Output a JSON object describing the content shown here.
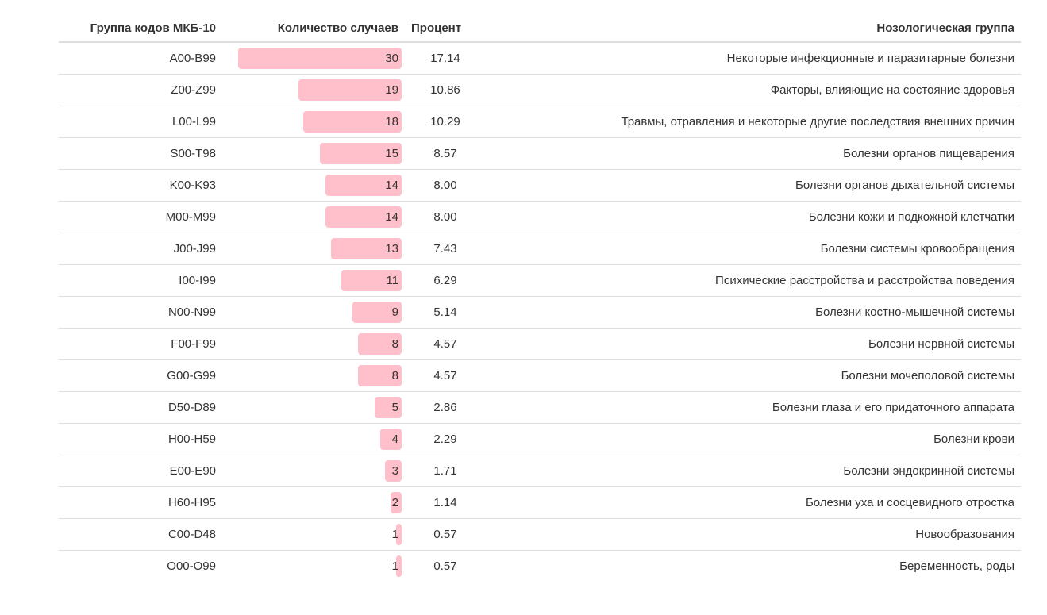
{
  "table": {
    "headers": {
      "code": "Группа кодов МКБ-10",
      "count": "Количество случаев",
      "percent": "Процент",
      "group": "Нозологическая группа"
    },
    "bar_color": "#ffc0cb",
    "max_count": 30,
    "rows": [
      {
        "code": "A00-B99",
        "count": "30",
        "percent": "17.14",
        "group": "Некоторые инфекционные и паразитарные болезни"
      },
      {
        "code": "Z00-Z99",
        "count": "19",
        "percent": "10.86",
        "group": "Факторы, влияющие на состояние здоровья"
      },
      {
        "code": "L00-L99",
        "count": "18",
        "percent": "10.29",
        "group": "Травмы, отравления и некоторые другие последствия внешних причин"
      },
      {
        "code": "S00-T98",
        "count": "15",
        "percent": "8.57",
        "group": "Болезни органов пищеварения"
      },
      {
        "code": "K00-K93",
        "count": "14",
        "percent": "8.00",
        "group": "Болезни органов дыхательной системы"
      },
      {
        "code": "M00-M99",
        "count": "14",
        "percent": "8.00",
        "group": "Болезни кожи и подкожной клетчатки"
      },
      {
        "code": "J00-J99",
        "count": "13",
        "percent": "7.43",
        "group": "Болезни системы кровообращения"
      },
      {
        "code": "I00-I99",
        "count": "11",
        "percent": "6.29",
        "group": "Психические расстройства и расстройства поведения"
      },
      {
        "code": "N00-N99",
        "count": "9",
        "percent": "5.14",
        "group": "Болезни костно-мышечной системы"
      },
      {
        "code": "F00-F99",
        "count": "8",
        "percent": "4.57",
        "group": "Болезни нервной системы"
      },
      {
        "code": "G00-G99",
        "count": "8",
        "percent": "4.57",
        "group": "Болезни мочеполовой системы"
      },
      {
        "code": "D50-D89",
        "count": "5",
        "percent": "2.86",
        "group": "Болезни глаза и его придаточного аппарата"
      },
      {
        "code": "H00-H59",
        "count": "4",
        "percent": "2.29",
        "group": "Болезни крови"
      },
      {
        "code": "E00-E90",
        "count": "3",
        "percent": "1.71",
        "group": "Болезни эндокринной системы"
      },
      {
        "code": "H60-H95",
        "count": "2",
        "percent": "1.14",
        "group": "Болезни уха и сосцевидного отростка"
      },
      {
        "code": "C00-D48",
        "count": "1",
        "percent": "0.57",
        "group": "Новообразования"
      },
      {
        "code": "O00-O99",
        "count": "1",
        "percent": "0.57",
        "group": "Беременность, роды"
      }
    ]
  }
}
